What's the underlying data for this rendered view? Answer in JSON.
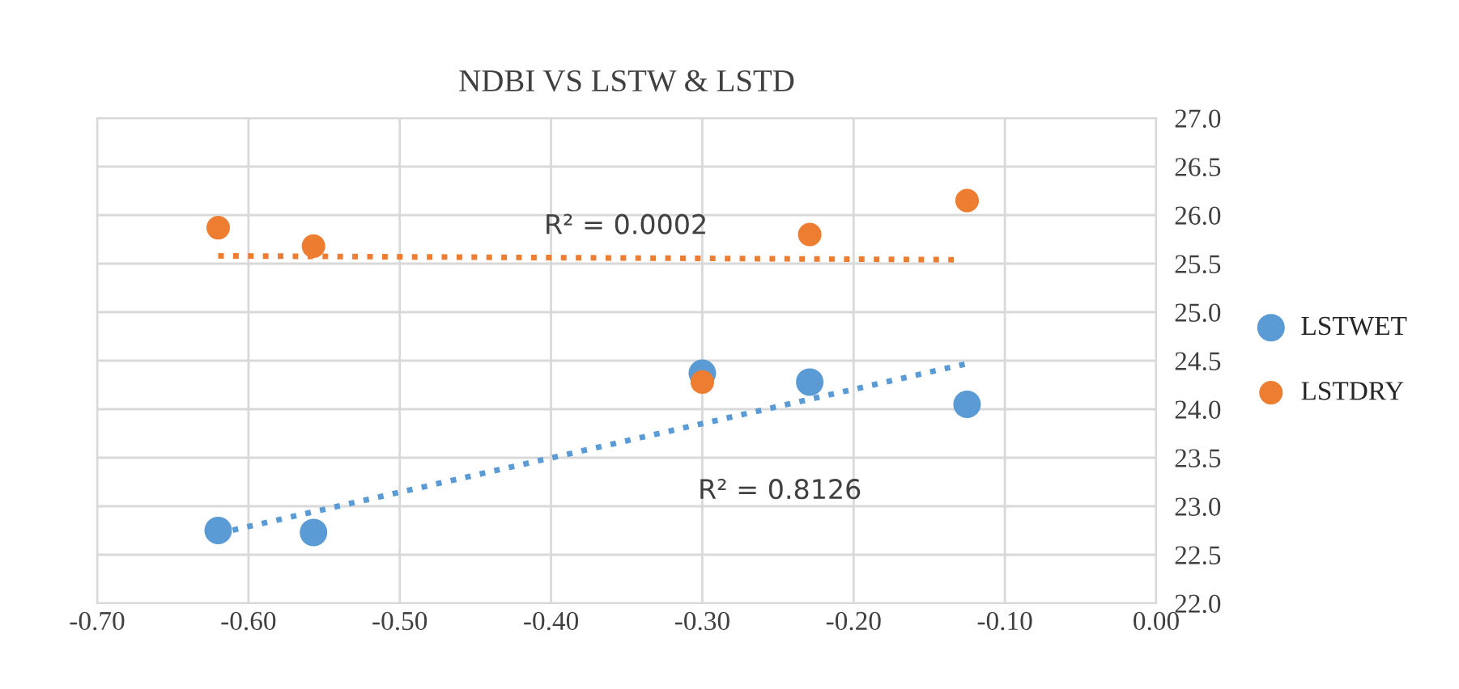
{
  "chart_data": {
    "type": "scatter",
    "title": "NDBI VS LSTW & LSTD",
    "series": [
      {
        "name": "LSTWET",
        "color": "#5b9bd5",
        "x": [
          -0.62,
          -0.557,
          -0.3,
          -0.229,
          -0.125
        ],
        "values": [
          22.75,
          22.73,
          24.37,
          24.28,
          24.05
        ]
      },
      {
        "name": "LSTDRY",
        "color": "#ed7d31",
        "x": [
          -0.62,
          -0.557,
          -0.3,
          -0.229,
          -0.125
        ],
        "values": [
          25.87,
          25.68,
          24.28,
          25.8,
          26.15
        ]
      },
      {
        "type": "line",
        "color": "#5b9bd5",
        "x": [
          -0.62,
          -0.125
        ],
        "values": [
          22.72,
          24.47
        ],
        "line_style": "dotted",
        "marker": "none"
      },
      {
        "type": "line",
        "color": "#ed7d31",
        "x": [
          -0.62,
          -0.13
        ],
        "values": [
          25.58,
          25.54
        ],
        "line_style": "dotted",
        "marker": "none"
      }
    ],
    "annotations": [
      "R² = 0.0002",
      "R² = 0.8126"
    ],
    "xlim": [
      -0.7,
      0.0
    ],
    "xticks": [
      {
        "value": -0.7,
        "label": "-0.70"
      },
      {
        "value": -0.6,
        "label": "-0.60"
      },
      {
        "value": -0.5,
        "label": "-0.50"
      },
      {
        "value": -0.4,
        "label": "-0.40"
      },
      {
        "value": -0.3,
        "label": "-0.30"
      },
      {
        "value": -0.2,
        "label": "-0.20"
      },
      {
        "value": -0.1,
        "label": "-0.10"
      },
      {
        "value": 0.0,
        "label": "0.00"
      }
    ],
    "ylim": [
      22.0,
      27.0
    ],
    "yticks": [
      {
        "value": 22.0,
        "label": "22.0"
      },
      {
        "value": 22.5,
        "label": "22.5"
      },
      {
        "value": 23.0,
        "label": "23.0"
      },
      {
        "value": 23.5,
        "label": "23.5"
      },
      {
        "value": 24.0,
        "label": "24.0"
      },
      {
        "value": 24.5,
        "label": "24.5"
      },
      {
        "value": 25.0,
        "label": "25.0"
      },
      {
        "value": 25.5,
        "label": "25.5"
      },
      {
        "value": 26.0,
        "label": "26.0"
      },
      {
        "value": 26.5,
        "label": "26.5"
      },
      {
        "value": 27.0,
        "label": "27.0"
      }
    ],
    "grid": true,
    "legend": "right",
    "marker": "circle"
  }
}
